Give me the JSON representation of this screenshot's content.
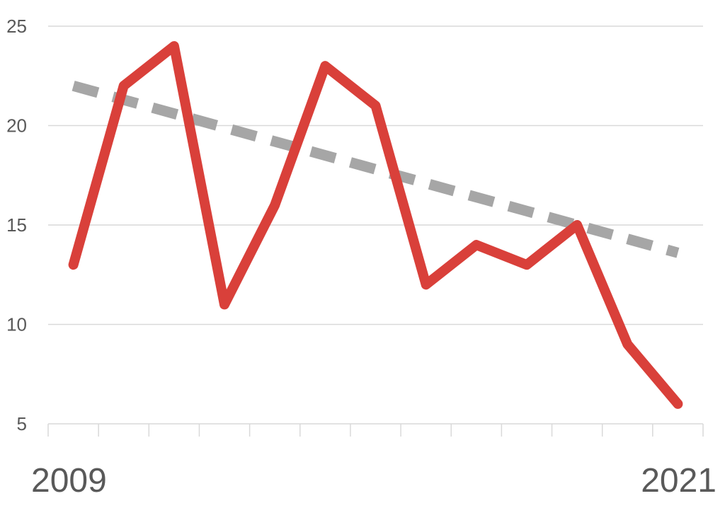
{
  "chart_data": {
    "type": "line",
    "title": "",
    "xlabel": "",
    "ylabel": "",
    "x": [
      2009,
      2010,
      2011,
      2012,
      2013,
      2014,
      2015,
      2016,
      2017,
      2018,
      2019,
      2020,
      2021
    ],
    "x_tick_labels": [
      "2009",
      "2021"
    ],
    "xlim": [
      2008.5,
      2021.5
    ],
    "ylim": [
      5,
      25
    ],
    "y_ticks": [
      5,
      10,
      15,
      20,
      25
    ],
    "grid": true,
    "legend": "none",
    "series": [
      {
        "values": [
          13,
          22,
          24,
          11,
          16,
          23,
          21,
          12,
          14,
          13,
          15,
          9,
          6
        ],
        "color": "#d9403a",
        "style": "solid"
      },
      {
        "values": [
          22.0,
          21.3,
          20.6,
          19.9,
          19.2,
          18.5,
          17.8,
          17.1,
          16.4,
          15.7,
          15.0,
          14.3,
          13.6
        ],
        "color": "#a6a6a6",
        "style": "dashed"
      }
    ]
  }
}
